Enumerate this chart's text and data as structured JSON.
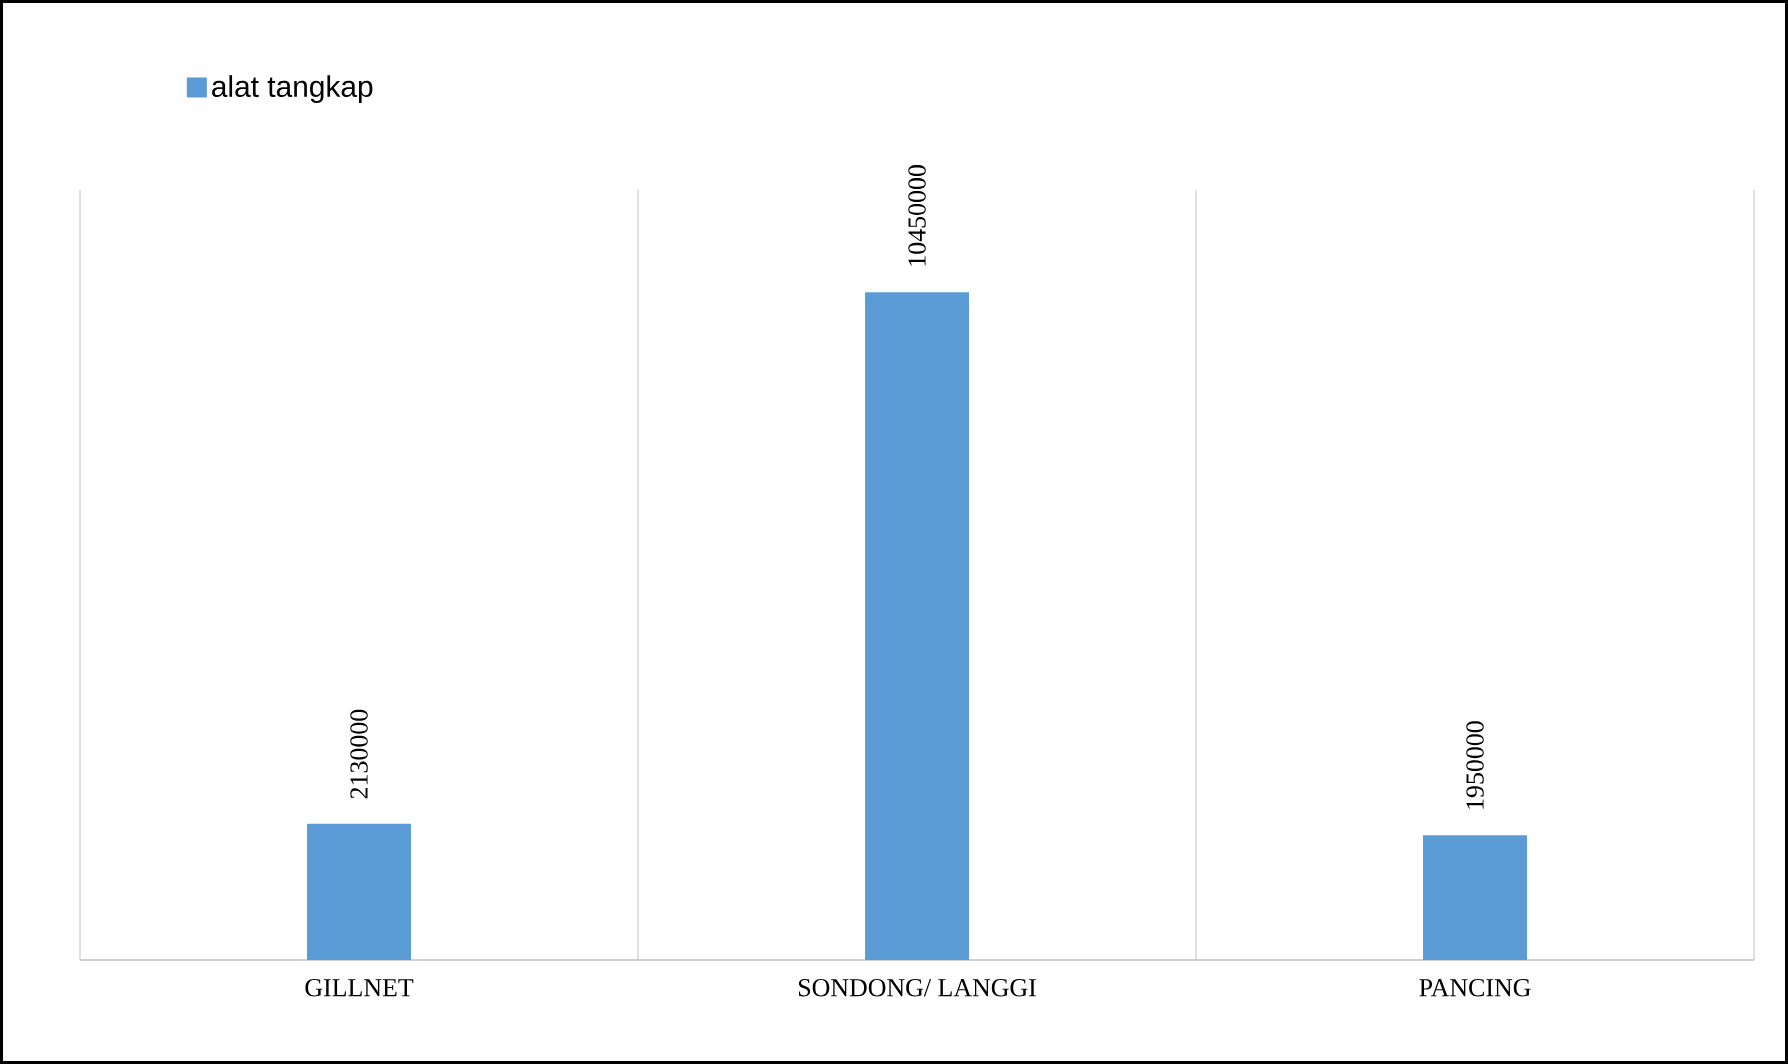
{
  "chart_data": {
    "type": "bar",
    "categories": [
      "GILLNET",
      "SONDONG/ LANGGI",
      "PANCING"
    ],
    "series": [
      {
        "name": "alat tangkap",
        "color": "#5b9bd5",
        "values": [
          2130000,
          10450000,
          1950000
        ]
      }
    ],
    "data_labels": true,
    "grid": "x",
    "legend": "top left"
  }
}
